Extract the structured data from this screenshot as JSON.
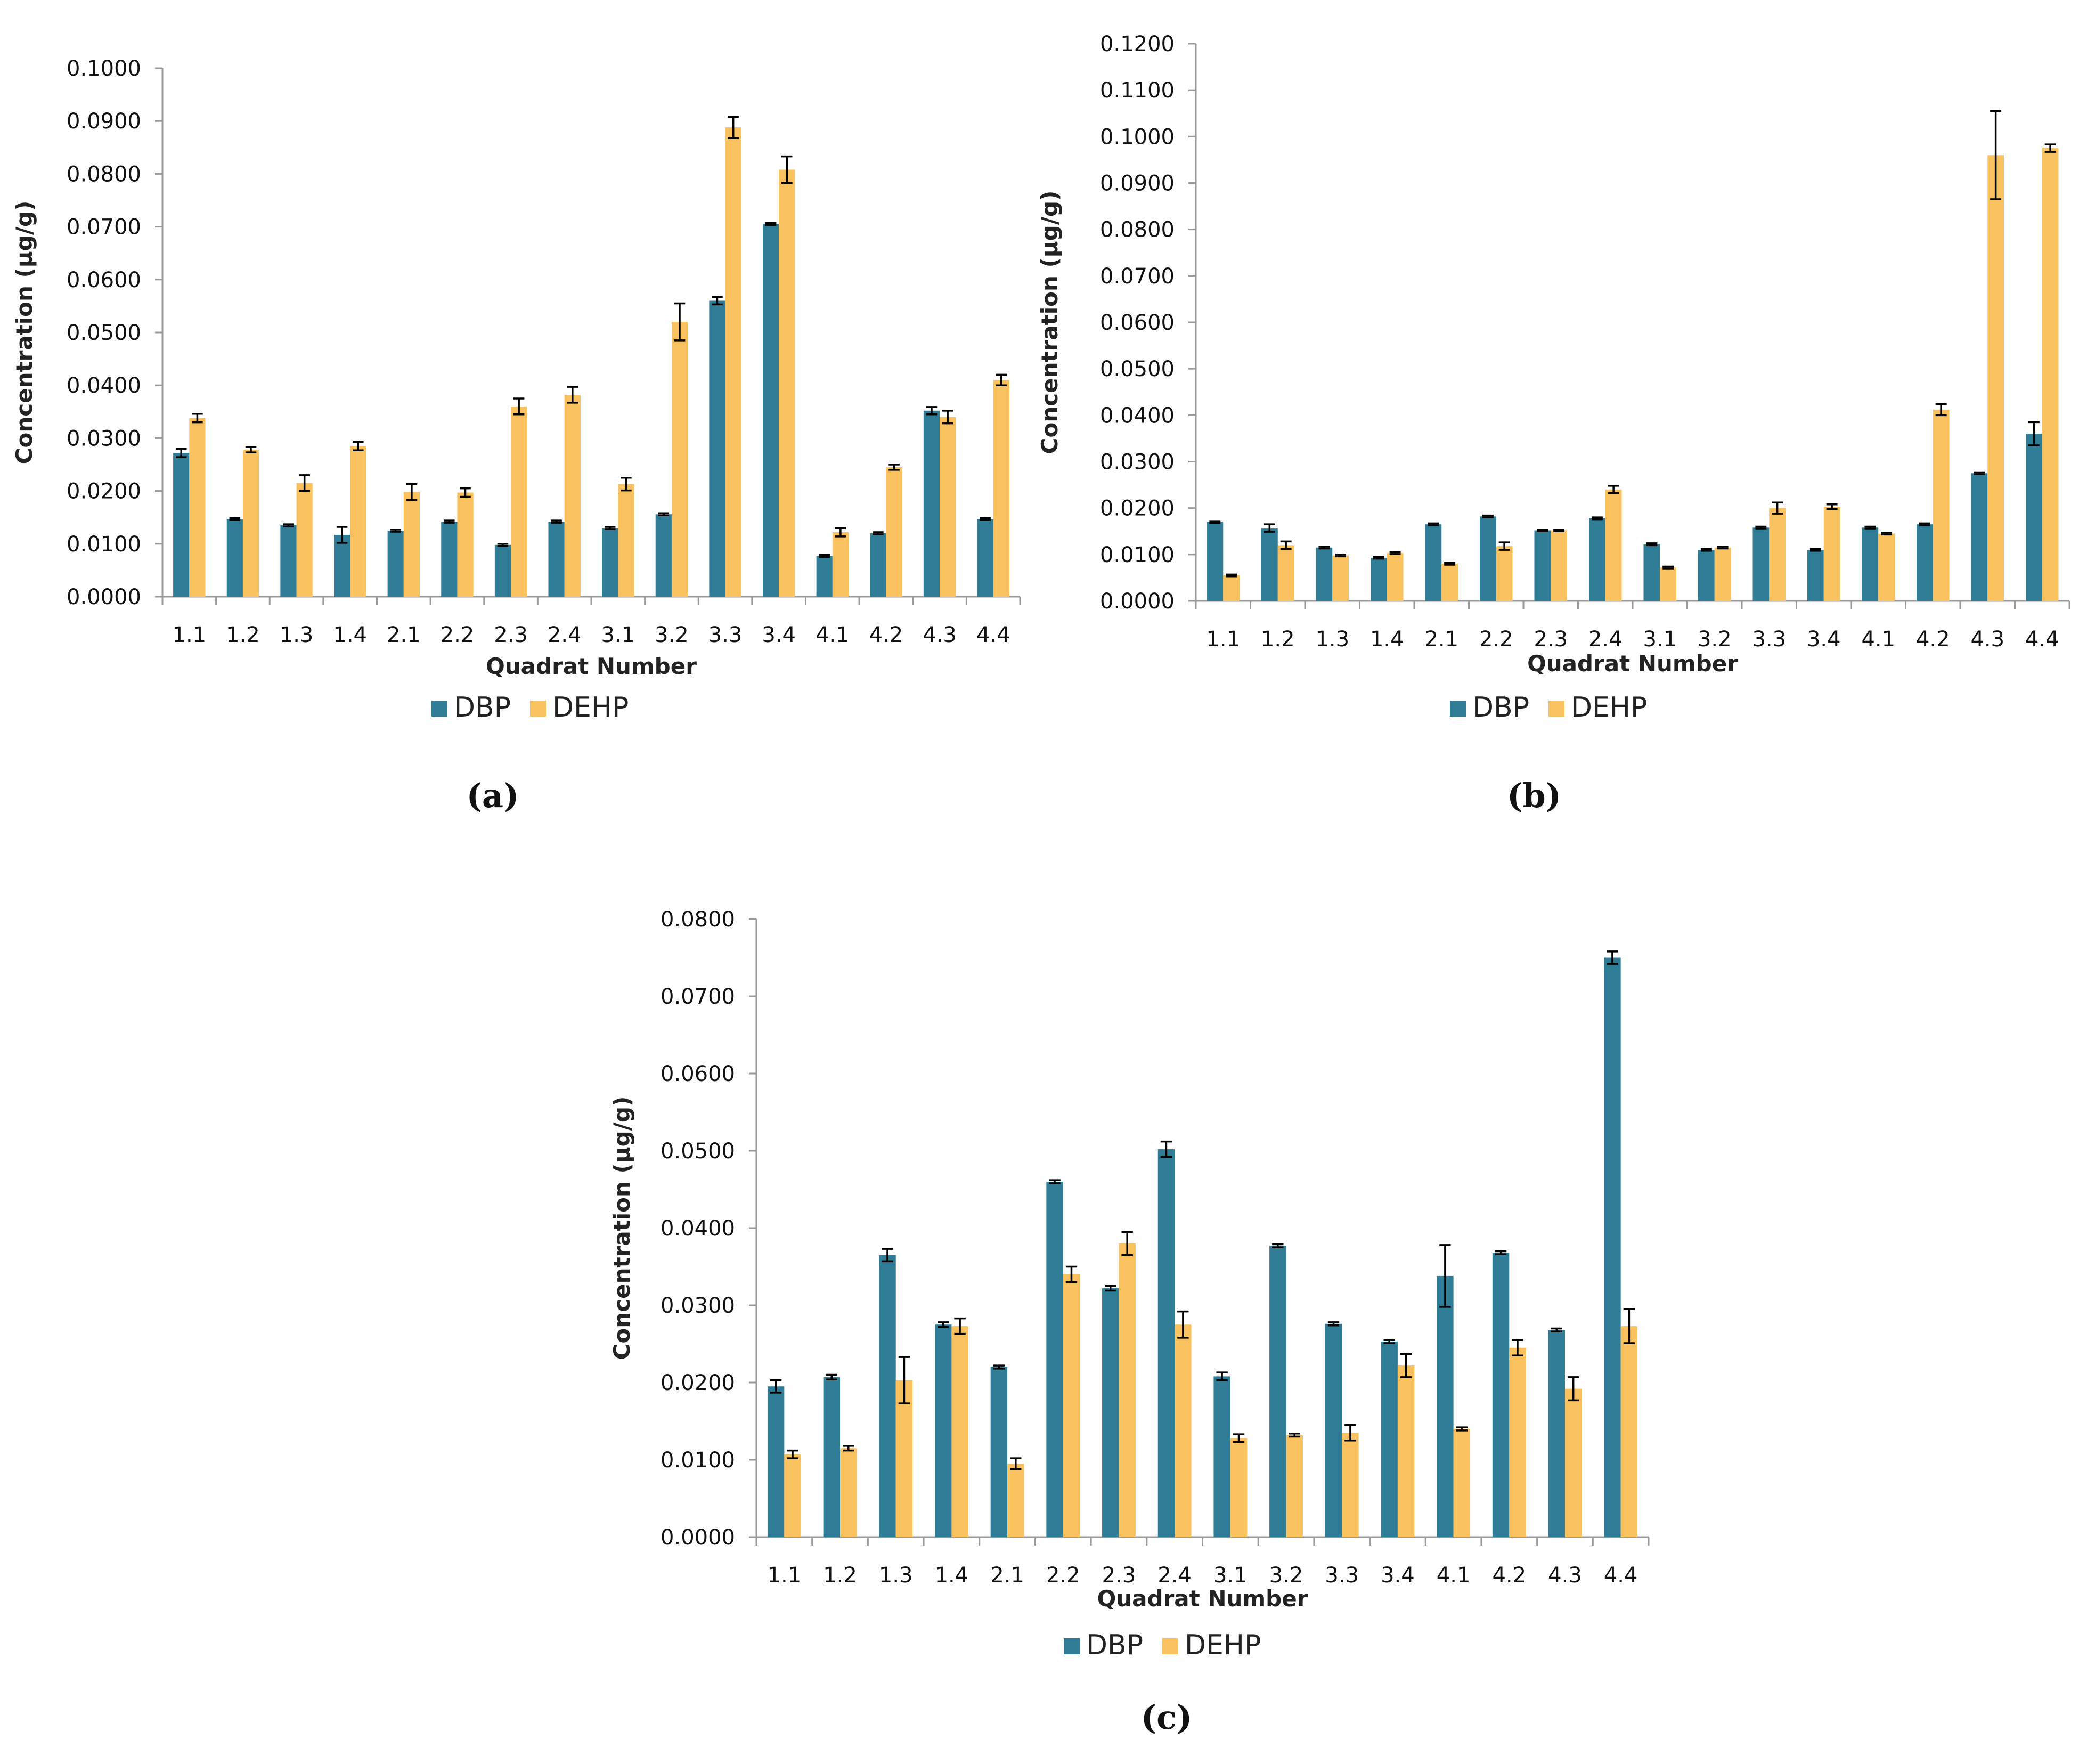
{
  "colors": {
    "dbp": "#2F7C96",
    "dehp": "#F9C25E",
    "axis": "#9a9a9a",
    "error": "#000000"
  },
  "chart_data": [
    {
      "type": "bar",
      "caption": "(a)",
      "xlabel": "Quadrat Number",
      "ylabel": "Concentration (µg/g)",
      "ylim": [
        0,
        0.1
      ],
      "ytick_step": 0.01,
      "yticks": [
        "0.0000",
        "0.0100",
        "0.0200",
        "0.0300",
        "0.0400",
        "0.0500",
        "0.0600",
        "0.0700",
        "0.0800",
        "0.0900",
        "0.1000"
      ],
      "categories": [
        "1.1",
        "1.2",
        "1.3",
        "1.4",
        "2.1",
        "2.2",
        "2.3",
        "2.4",
        "3.1",
        "3.2",
        "3.3",
        "3.4",
        "4.1",
        "4.2",
        "4.3",
        "4.4"
      ],
      "series": [
        {
          "name": "DBP",
          "values": [
            0.0272,
            0.0147,
            0.0135,
            0.0117,
            0.0125,
            0.0142,
            0.0098,
            0.0142,
            0.013,
            0.0156,
            0.056,
            0.0705,
            0.0077,
            0.012,
            0.0352,
            0.0147
          ],
          "errors": [
            0.0008,
            0.0002,
            0.0002,
            0.0015,
            0.0002,
            0.0002,
            0.0002,
            0.0002,
            0.0002,
            0.0002,
            0.0007,
            0.0002,
            0.0002,
            0.0002,
            0.0007,
            0.0002
          ]
        },
        {
          "name": "DEHP",
          "values": [
            0.0338,
            0.0278,
            0.0215,
            0.0285,
            0.0198,
            0.0197,
            0.036,
            0.0382,
            0.0213,
            0.052,
            0.0888,
            0.0808,
            0.0122,
            0.0245,
            0.034,
            0.041
          ],
          "errors": [
            0.0008,
            0.0005,
            0.0015,
            0.0008,
            0.0015,
            0.0008,
            0.0015,
            0.0015,
            0.0012,
            0.0035,
            0.002,
            0.0025,
            0.0008,
            0.0005,
            0.0012,
            0.001
          ]
        }
      ],
      "legend": [
        "DBP",
        "DEHP"
      ]
    },
    {
      "type": "bar",
      "caption": "(b)",
      "xlabel": "Quadrat Number",
      "ylabel": "Concentration (µg/g)",
      "ylim": [
        0,
        0.12
      ],
      "ytick_step": 0.01,
      "yticks": [
        "0.0000",
        "0.0100",
        "0.0200",
        "0.0300",
        "0.0400",
        "0.0500",
        "0.0600",
        "0.0700",
        "0.0800",
        "0.0900",
        "0.1000",
        "0.1100",
        "0.1200"
      ],
      "categories": [
        "1.1",
        "1.2",
        "1.3",
        "1.4",
        "2.1",
        "2.2",
        "2.3",
        "2.4",
        "3.1",
        "3.2",
        "3.3",
        "3.4",
        "4.1",
        "4.2",
        "4.3",
        "4.4"
      ],
      "series": [
        {
          "name": "DBP",
          "values": [
            0.017,
            0.0157,
            0.0115,
            0.0093,
            0.0165,
            0.0182,
            0.0152,
            0.0178,
            0.0122,
            0.011,
            0.0158,
            0.011,
            0.0158,
            0.0165,
            0.0275,
            0.036
          ],
          "errors": [
            0.0002,
            0.0008,
            0.0002,
            0.0002,
            0.0002,
            0.0002,
            0.0002,
            0.0002,
            0.0002,
            0.0002,
            0.0002,
            0.0002,
            0.0002,
            0.0002,
            0.0002,
            0.0025
          ]
        },
        {
          "name": "DEHP",
          "values": [
            0.0055,
            0.012,
            0.0098,
            0.0103,
            0.008,
            0.0118,
            0.0152,
            0.024,
            0.0072,
            0.0115,
            0.02,
            0.0203,
            0.0145,
            0.0412,
            0.096,
            0.0975
          ],
          "errors": [
            0.0002,
            0.0008,
            0.0002,
            0.0002,
            0.0002,
            0.0008,
            0.0002,
            0.0008,
            0.0002,
            0.0002,
            0.0012,
            0.0005,
            0.0002,
            0.0012,
            0.0095,
            0.0008
          ]
        }
      ],
      "legend": [
        "DBP",
        "DEHP"
      ]
    },
    {
      "type": "bar",
      "caption": "(c)",
      "xlabel": "Quadrat Number",
      "ylabel": "Concentration (µg/g)",
      "ylim": [
        0,
        0.08
      ],
      "ytick_step": 0.01,
      "yticks": [
        "0.0000",
        "0.0100",
        "0.0200",
        "0.0300",
        "0.0400",
        "0.0500",
        "0.0600",
        "0.0700",
        "0.0800"
      ],
      "categories": [
        "1.1",
        "1.2",
        "1.3",
        "1.4",
        "2.1",
        "2.2",
        "2.3",
        "2.4",
        "3.1",
        "3.2",
        "3.3",
        "3.4",
        "4.1",
        "4.2",
        "4.3",
        "4.4"
      ],
      "series": [
        {
          "name": "DBP",
          "values": [
            0.0195,
            0.0207,
            0.0365,
            0.0275,
            0.022,
            0.046,
            0.0322,
            0.0502,
            0.0208,
            0.0377,
            0.0276,
            0.0253,
            0.0338,
            0.0368,
            0.0268,
            0.075
          ],
          "errors": [
            0.0008,
            0.0003,
            0.0008,
            0.0003,
            0.0002,
            0.0002,
            0.0003,
            0.001,
            0.0005,
            0.0002,
            0.0002,
            0.0002,
            0.004,
            0.0002,
            0.0002,
            0.0008
          ]
        },
        {
          "name": "DEHP",
          "values": [
            0.0107,
            0.0115,
            0.0203,
            0.0273,
            0.0095,
            0.034,
            0.038,
            0.0275,
            0.0128,
            0.0132,
            0.0135,
            0.0222,
            0.014,
            0.0245,
            0.0192,
            0.0273
          ],
          "errors": [
            0.0005,
            0.0003,
            0.003,
            0.001,
            0.0007,
            0.001,
            0.0015,
            0.0017,
            0.0005,
            0.0002,
            0.001,
            0.0015,
            0.0002,
            0.001,
            0.0015,
            0.0022
          ]
        }
      ],
      "legend": [
        "DBP",
        "DEHP"
      ]
    }
  ]
}
